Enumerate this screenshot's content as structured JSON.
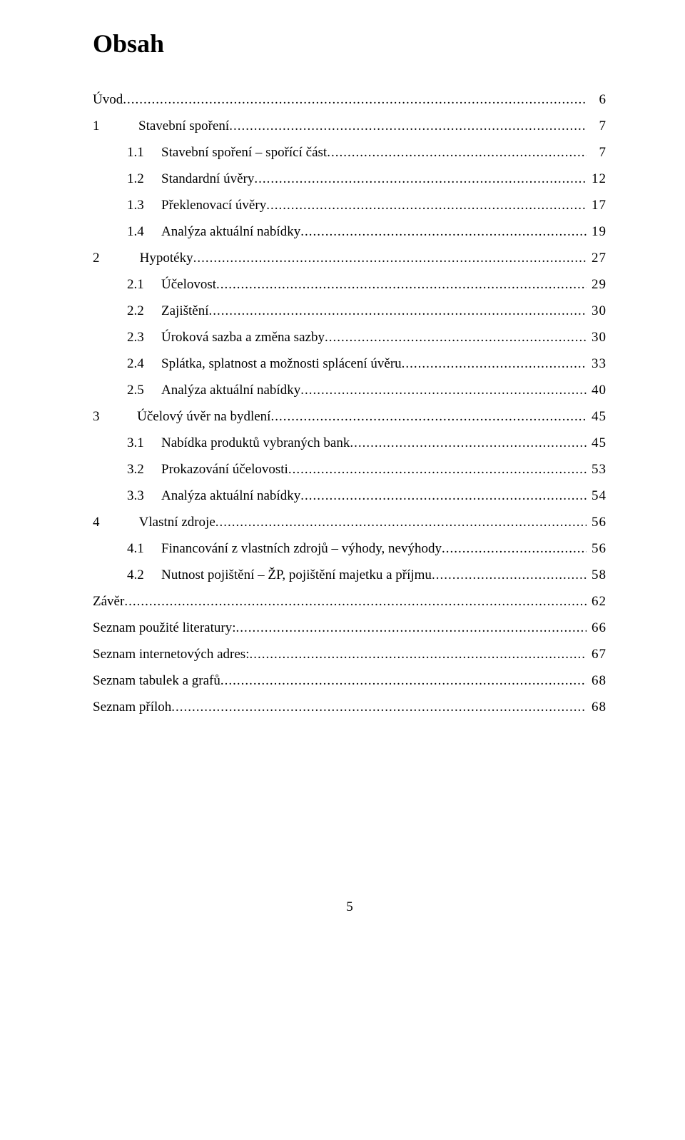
{
  "title": "Obsah",
  "page_number": "5",
  "toc": [
    {
      "level": 1,
      "num": "",
      "text": "Úvod",
      "page": "6"
    },
    {
      "level": 1,
      "num": "1",
      "text": "Stavební spoření",
      "page": "7"
    },
    {
      "level": 2,
      "num": "1.1",
      "text": "Stavební spoření – spořící část",
      "page": "7"
    },
    {
      "level": 2,
      "num": "1.2",
      "text": "Standardní úvěry",
      "page": "12"
    },
    {
      "level": 2,
      "num": "1.3",
      "text": "Překlenovací úvěry",
      "page": "17"
    },
    {
      "level": 2,
      "num": "1.4",
      "text": "Analýza aktuální nabídky",
      "page": "19"
    },
    {
      "level": 1,
      "num": "2",
      "text": "Hypotéky",
      "page": "27"
    },
    {
      "level": 2,
      "num": "2.1",
      "text": "Účelovost",
      "page": "29"
    },
    {
      "level": 2,
      "num": "2.2",
      "text": "Zajištění",
      "page": "30"
    },
    {
      "level": 2,
      "num": "2.3",
      "text": "Úroková sazba a změna sazby",
      "page": "30"
    },
    {
      "level": 2,
      "num": "2.4",
      "text": "Splátka, splatnost a možnosti splácení úvěru",
      "page": "33"
    },
    {
      "level": 2,
      "num": "2.5",
      "text": "Analýza aktuální nabídky",
      "page": "40"
    },
    {
      "level": 1,
      "num": "3",
      "text": "Účelový úvěr na bydlení",
      "page": "45"
    },
    {
      "level": 2,
      "num": "3.1",
      "text": "Nabídka produktů vybraných bank",
      "page": "45"
    },
    {
      "level": 2,
      "num": "3.2",
      "text": "Prokazování účelovosti",
      "page": "53"
    },
    {
      "level": 2,
      "num": "3.3",
      "text": "Analýza aktuální nabídky",
      "page": "54"
    },
    {
      "level": 1,
      "num": "4",
      "text": "Vlastní zdroje",
      "page": "56"
    },
    {
      "level": 2,
      "num": "4.1",
      "text": "Financování z vlastních zdrojů – výhody, nevýhody",
      "page": "56"
    },
    {
      "level": 2,
      "num": "4.2",
      "text": "Nutnost pojištění – ŽP, pojištění majetku a příjmu",
      "page": "58"
    },
    {
      "level": 1,
      "num": "",
      "text": "Závěr",
      "page": "62"
    },
    {
      "level": 1,
      "num": "",
      "text": "Seznam použité literatury:",
      "page": "66"
    },
    {
      "level": 1,
      "num": "",
      "text": "Seznam internetových adres:",
      "page": "67"
    },
    {
      "level": 1,
      "num": "",
      "text": "Seznam tabulek a grafů",
      "page": "68"
    },
    {
      "level": 1,
      "num": "",
      "text": "Seznam příloh",
      "page": "68"
    }
  ]
}
